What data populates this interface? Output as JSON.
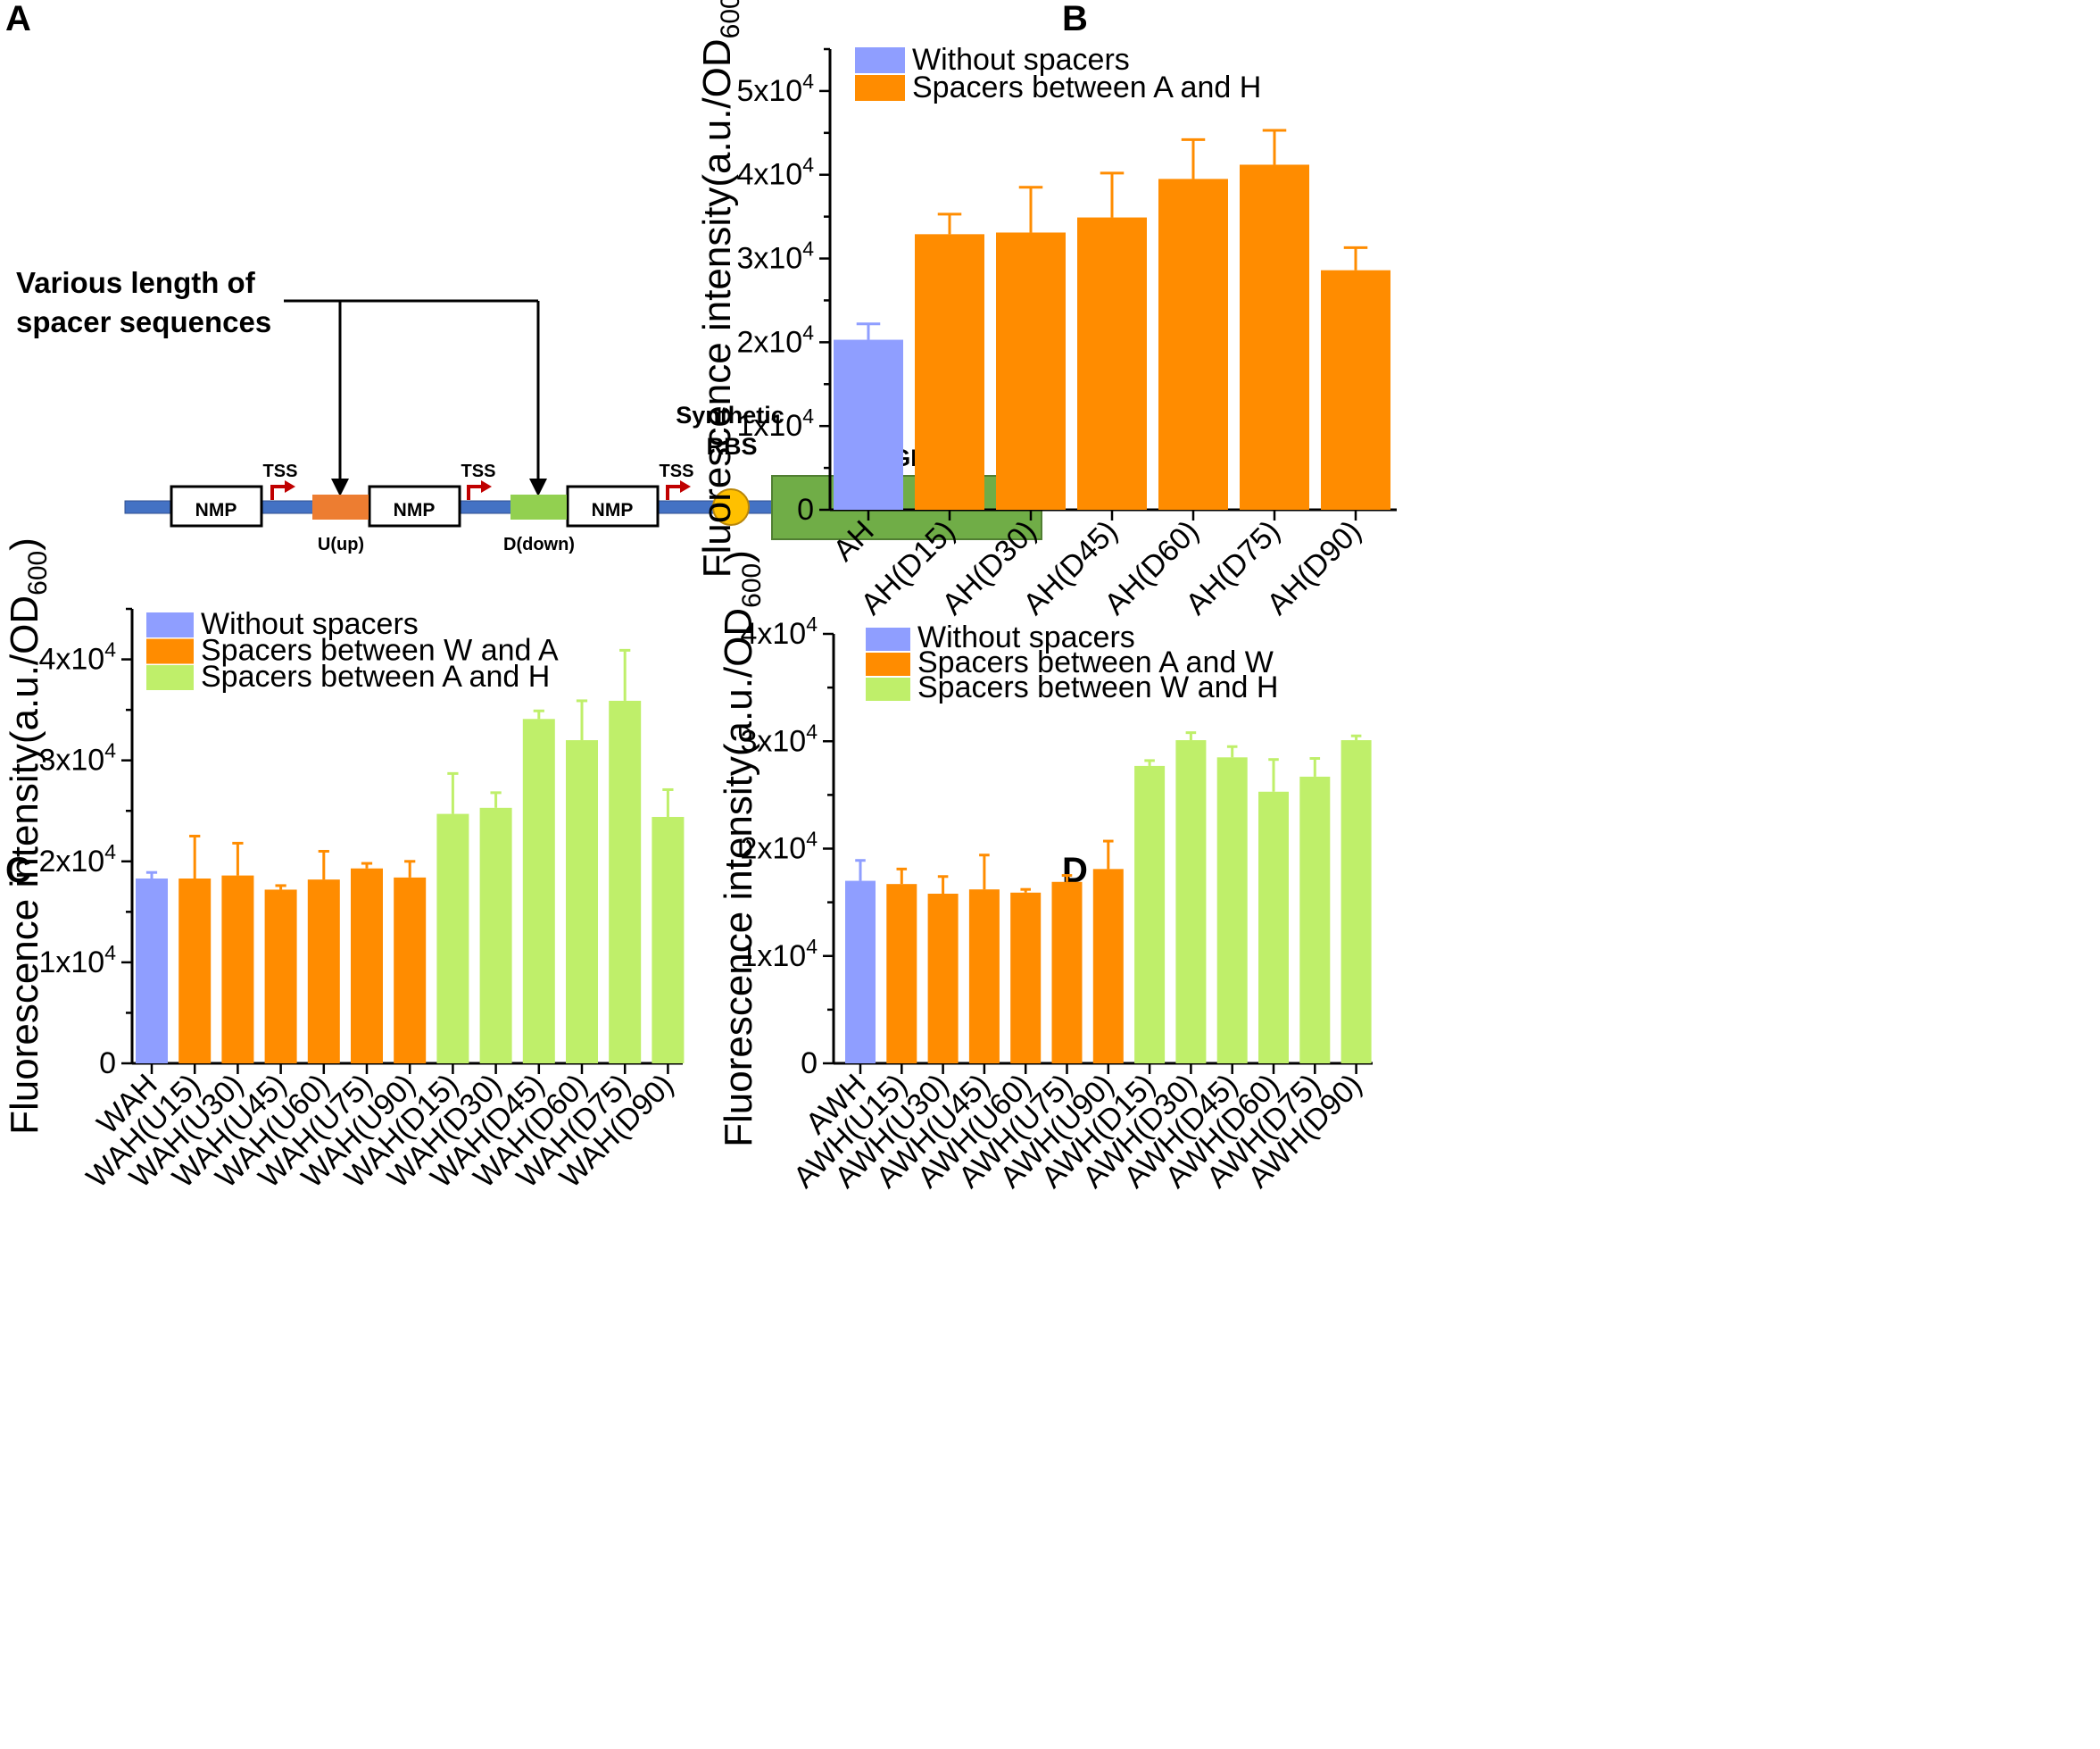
{
  "panels": {
    "a": {
      "letter": "A",
      "spacer_label_line1": "Various length of",
      "spacer_label_line2": "spacer sequences",
      "promoter_label": "NMP",
      "tss_label": "TSS",
      "up_label": "U(up)",
      "down_label": "D(down)",
      "rbs_line1": "Synthetic",
      "rbs_line2": "RBS",
      "reporter_label": "sfGFP",
      "colors": {
        "backbone": "#4472C4",
        "up_spacer": "#ED7D31",
        "down_spacer": "#92D050",
        "rbs": "#FFC000",
        "reporter": "#70AD47",
        "tss_arrow": "#C00000"
      }
    },
    "b": {
      "letter": "B"
    },
    "c": {
      "letter": "C"
    },
    "d": {
      "letter": "D"
    }
  },
  "colors": {
    "without": "#8F9EFF",
    "orange": "#FF8C00",
    "green": "#BFEF6A"
  },
  "chart_data": [
    {
      "panel": "B",
      "type": "bar",
      "ylabel": "Fluorescence intensity(a.u./OD600)",
      "ylabel_main": "Fluorescence intensity(a.u./OD",
      "ylabel_sub": "600",
      "ylabel_end": ")",
      "ylim": [
        0,
        55000
      ],
      "yticks": [
        0,
        10000,
        20000,
        30000,
        40000,
        50000
      ],
      "yticklabels": [
        "0",
        "1x10",
        "2x10",
        "3x10",
        "4x10",
        "5x10"
      ],
      "ytick_exp": "4",
      "categories": [
        "AH",
        "AH(D15)",
        "AH(D30)",
        "AH(D45)",
        "AH(D60)",
        "AH(D75)",
        "AH(D90)"
      ],
      "values": [
        20300,
        32900,
        33100,
        34900,
        39500,
        41200,
        28600
      ],
      "errors": [
        1900,
        2400,
        5400,
        5300,
        4700,
        4100,
        2700
      ],
      "groups": [
        "without",
        "orange",
        "orange",
        "orange",
        "orange",
        "orange",
        "orange"
      ],
      "legend": [
        {
          "label": "Without spacers",
          "group": "without"
        },
        {
          "label": "Spacers between A and H",
          "group": "orange"
        }
      ]
    },
    {
      "panel": "C",
      "type": "bar",
      "ylabel": "Fluorescence intensity(a.u./OD600)",
      "ylabel_main": "Fluorescence intensity(a.u./OD",
      "ylabel_sub": "600",
      "ylabel_end": ")",
      "ylim": [
        0,
        45000
      ],
      "yticks": [
        0,
        10000,
        20000,
        30000,
        40000
      ],
      "yticklabels": [
        "0",
        "1x10",
        "2x10",
        "3x10",
        "4x10"
      ],
      "ytick_exp": "4",
      "categories": [
        "WAH",
        "WAH(U15)",
        "WAH(U30)",
        "WAH(U45)",
        "WAH(U60)",
        "WAH(U75)",
        "WAH(U90)",
        "WAH(D15)",
        "WAH(D30)",
        "WAH(D45)",
        "WAH(D60)",
        "WAH(D75)",
        "WAH(D90)"
      ],
      "values": [
        18300,
        18300,
        18600,
        17200,
        18200,
        19300,
        18400,
        24700,
        25300,
        34100,
        32000,
        35900,
        24400
      ],
      "errors": [
        600,
        4200,
        3200,
        400,
        2800,
        500,
        1600,
        4000,
        1500,
        800,
        3900,
        5000,
        2700
      ],
      "groups": [
        "without",
        "orange",
        "orange",
        "orange",
        "orange",
        "orange",
        "orange",
        "green",
        "green",
        "green",
        "green",
        "green",
        "green"
      ],
      "legend": [
        {
          "label": "Without spacers",
          "group": "without"
        },
        {
          "label": "Spacers between W and A",
          "group": "orange"
        },
        {
          "label": "Spacers between A and H",
          "group": "green"
        }
      ]
    },
    {
      "panel": "D",
      "type": "bar",
      "ylabel": "Fluorescence intensity(a.u./OD600)",
      "ylabel_main": "Fluorescence intensity(a.u./OD",
      "ylabel_sub": "600",
      "ylabel_end": ")",
      "ylim": [
        0,
        40000
      ],
      "yticks": [
        0,
        10000,
        20000,
        30000,
        40000
      ],
      "yticklabels": [
        "0",
        "1x10",
        "2x10",
        "3x10",
        "4x10"
      ],
      "ytick_exp": "4",
      "categories": [
        "AWH",
        "AWH(U15)",
        "AWH(U30)",
        "AWH(U45)",
        "AWH(U60)",
        "AWH(U75)",
        "AWH(U90)",
        "AWH(D15)",
        "AWH(D30)",
        "AWH(D45)",
        "AWH(D60)",
        "AWH(D75)",
        "AWH(D90)"
      ],
      "values": [
        17000,
        16700,
        15800,
        16200,
        15900,
        16900,
        18100,
        27700,
        30100,
        28500,
        25300,
        26700,
        30100
      ],
      "errors": [
        1900,
        1400,
        1600,
        3200,
        300,
        600,
        2600,
        500,
        700,
        1000,
        3000,
        1700,
        400
      ],
      "groups": [
        "without",
        "orange",
        "orange",
        "orange",
        "orange",
        "orange",
        "orange",
        "green",
        "green",
        "green",
        "green",
        "green",
        "green"
      ],
      "legend": [
        {
          "label": "Without spacers",
          "group": "without"
        },
        {
          "label": "Spacers between A and W",
          "group": "orange"
        },
        {
          "label": "Spacers between W and H",
          "group": "green"
        }
      ]
    }
  ]
}
